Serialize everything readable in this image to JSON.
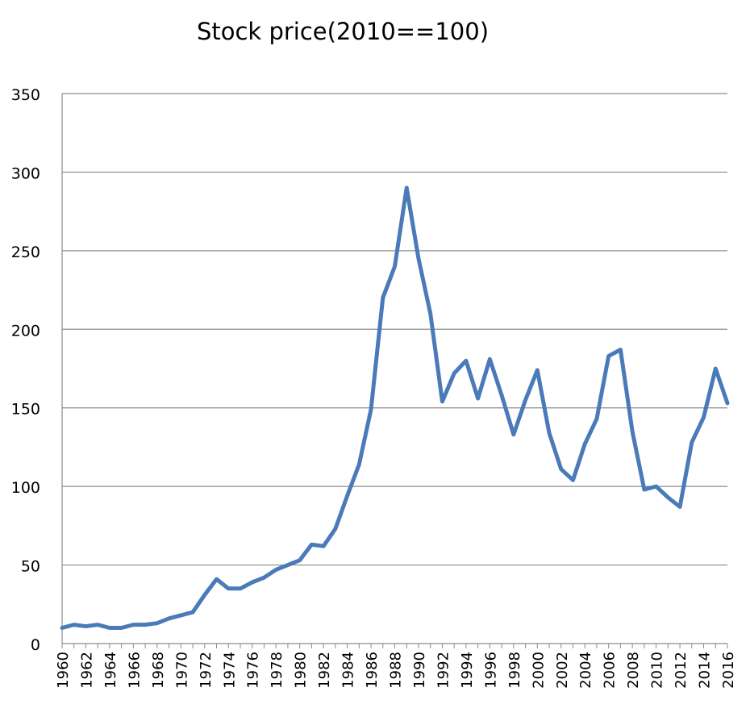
{
  "chart_data": {
    "type": "line",
    "title": "Stock price(2010==100)",
    "xlabel": "",
    "ylabel": "",
    "ylim": [
      0,
      350
    ],
    "yticks": [
      0,
      50,
      100,
      150,
      200,
      250,
      300,
      350
    ],
    "xlim": [
      1960,
      2016
    ],
    "xtick_labels": [
      "1960",
      "1962",
      "1964",
      "1966",
      "1968",
      "1970",
      "1972",
      "1974",
      "1976",
      "1978",
      "1980",
      "1982",
      "1984",
      "1986",
      "1988",
      "1990",
      "1992",
      "1994",
      "1996",
      "1998",
      "2000",
      "2002",
      "2004",
      "2006",
      "2008",
      "2010",
      "2012",
      "2014",
      "2016"
    ],
    "grid": true,
    "legend": "none",
    "line_color": "#4a7ab8",
    "series": [
      {
        "x": [
          1960,
          1961,
          1962,
          1963,
          1964,
          1965,
          1966,
          1967,
          1968,
          1969,
          1970,
          1971,
          1972,
          1973,
          1974,
          1975,
          1976,
          1977,
          1978,
          1979,
          1980,
          1981,
          1982,
          1983,
          1984,
          1985,
          1986,
          1987,
          1988,
          1989,
          1990,
          1991,
          1992,
          1993,
          1994,
          1995,
          1996,
          1997,
          1998,
          1999,
          2000,
          2001,
          2002,
          2003,
          2004,
          2005,
          2006,
          2007,
          2008,
          2009,
          2010,
          2011,
          2012,
          2013,
          2014,
          2015,
          2016
        ],
        "values": [
          10,
          12,
          11,
          12,
          10,
          10,
          12,
          12,
          13,
          16,
          18,
          20,
          31,
          41,
          35,
          35,
          39,
          42,
          47,
          50,
          53,
          63,
          62,
          73,
          94,
          114,
          149,
          220,
          240,
          290,
          245,
          210,
          154,
          172,
          180,
          156,
          181,
          158,
          133,
          155,
          174,
          134,
          111,
          104,
          127,
          143,
          183,
          187,
          135,
          98,
          100,
          93,
          87,
          128,
          144,
          175,
          153
        ]
      }
    ]
  }
}
